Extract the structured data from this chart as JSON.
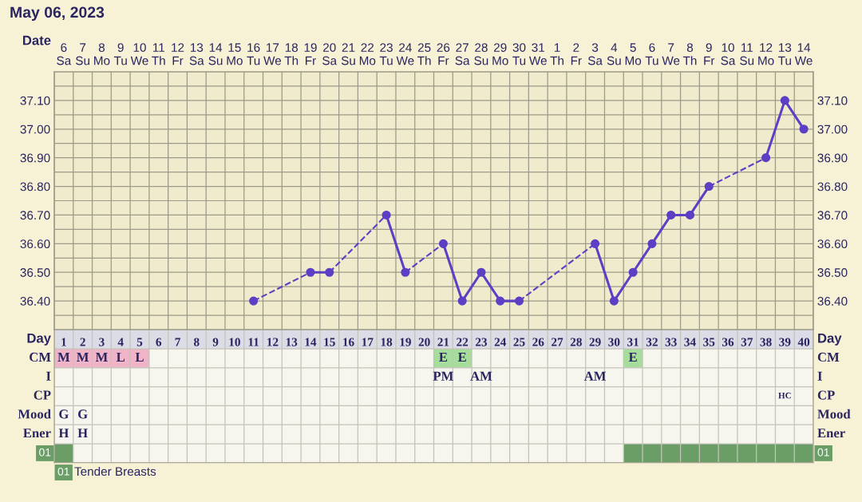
{
  "chart_data": [
    {
      "type": "line",
      "title": "May 06, 2023",
      "xlabel": "Date",
      "categories": [
        "6\nSa",
        "7\nSu",
        "8\nMo",
        "9\nTu",
        "10\nWe",
        "11\nTh",
        "12\nFr",
        "13\nSa",
        "14\nSu",
        "15\nMo",
        "16\nTu",
        "17\nWe",
        "18\nTh",
        "19\nFr",
        "20\nSa",
        "21\nSu",
        "22\nMo",
        "23\nTu",
        "24\nWe",
        "25\nTh",
        "26\nFr",
        "27\nSa",
        "28\nSu",
        "29\nMo",
        "30\nTu",
        "31\nWe",
        "1\nTh",
        "2\nFr",
        "3\nSa",
        "4\nSu",
        "5\nMo",
        "6\nTu",
        "7\nWe",
        "8\nTh",
        "9\nFr",
        "10\nSa",
        "11\nSu",
        "12\nMo",
        "13\nTu",
        "14\nWe"
      ],
      "series": [
        {
          "color": "#5b3fc4",
          "values": [
            null,
            null,
            null,
            null,
            null,
            null,
            null,
            null,
            null,
            null,
            36.4,
            null,
            null,
            36.5,
            36.5,
            null,
            null,
            36.7,
            36.5,
            null,
            36.6,
            36.4,
            36.5,
            36.4,
            36.4,
            null,
            null,
            null,
            36.6,
            36.4,
            36.5,
            36.6,
            36.7,
            36.7,
            36.8,
            null,
            null,
            36.9,
            37.1,
            37.0
          ]
        }
      ],
      "ylim": [
        36.3,
        37.2
      ],
      "yticks": [
        {
          "value": 36.35,
          "label": null
        },
        {
          "value": 36.4,
          "label": "36.40"
        },
        {
          "value": 36.45,
          "label": null
        },
        {
          "value": 36.5,
          "label": "36.50"
        },
        {
          "value": 36.55,
          "label": null
        },
        {
          "value": 36.6,
          "label": "36.60"
        },
        {
          "value": 36.65,
          "label": null
        },
        {
          "value": 36.7,
          "label": "36.70"
        },
        {
          "value": 36.75,
          "label": null
        },
        {
          "value": 36.8,
          "label": "36.80"
        },
        {
          "value": 36.85,
          "label": null
        },
        {
          "value": 36.9,
          "label": "36.90"
        },
        {
          "value": 36.95,
          "label": null
        },
        {
          "value": 37.0,
          "label": "37.00"
        },
        {
          "value": 37.05,
          "label": null
        },
        {
          "value": 37.1,
          "label": "37.10"
        },
        {
          "value": 37.15,
          "label": null
        }
      ],
      "y2lim": [
        36.3,
        37.2
      ],
      "y2ticks": [
        {
          "value": 36.35,
          "label": null
        },
        {
          "value": 36.4,
          "label": "36.40"
        },
        {
          "value": 36.45,
          "label": null
        },
        {
          "value": 36.5,
          "label": "36.50"
        },
        {
          "value": 36.55,
          "label": null
        },
        {
          "value": 36.6,
          "label": "36.60"
        },
        {
          "value": 36.65,
          "label": null
        },
        {
          "value": 36.7,
          "label": "36.70"
        },
        {
          "value": 36.75,
          "label": null
        },
        {
          "value": 36.8,
          "label": "36.80"
        },
        {
          "value": 36.85,
          "label": null
        },
        {
          "value": 36.9,
          "label": "36.90"
        },
        {
          "value": 36.95,
          "label": null
        },
        {
          "value": 37.0,
          "label": "37.00"
        },
        {
          "value": 37.05,
          "label": null
        },
        {
          "value": 37.1,
          "label": "37.10"
        },
        {
          "value": 37.15,
          "label": null
        }
      ],
      "grid": true,
      "marker": "circle"
    },
    {
      "type": "heatmap",
      "xlabel": "Day",
      "cells": [
        [
          null,
          null,
          null,
          null,
          null,
          null,
          null,
          null,
          null,
          null,
          null,
          null,
          null,
          null,
          null,
          null,
          null,
          null,
          null,
          null,
          null,
          null,
          null,
          null,
          null,
          null,
          null,
          null,
          null,
          null,
          null,
          null,
          null,
          null,
          null,
          null,
          null,
          null,
          null,
          null
        ],
        [
          null,
          null,
          null,
          null,
          null,
          null,
          null,
          null,
          null,
          null,
          null,
          null,
          null,
          null,
          null,
          null,
          null,
          null,
          null,
          null,
          null,
          null,
          null,
          null,
          null,
          null,
          null,
          null,
          null,
          null,
          null,
          null,
          null,
          null,
          null,
          null,
          null,
          null,
          null,
          null
        ],
        [
          null,
          null,
          null,
          null,
          null,
          null,
          null,
          null,
          null,
          null,
          null,
          null,
          null,
          null,
          null,
          null,
          null,
          null,
          null,
          null,
          null,
          null,
          null,
          null,
          null,
          null,
          null,
          null,
          null,
          null,
          null,
          null,
          null,
          null,
          null,
          null,
          null,
          null,
          null,
          null
        ],
        [
          null,
          null,
          null,
          null,
          null,
          null,
          null,
          null,
          null,
          null,
          null,
          null,
          null,
          null,
          null,
          null,
          null,
          null,
          null,
          null,
          null,
          null,
          null,
          null,
          null,
          null,
          null,
          null,
          null,
          null,
          null,
          null,
          null,
          null,
          null,
          null,
          null,
          null,
          null,
          null
        ],
        [
          null,
          null,
          null,
          null,
          null,
          null,
          null,
          null,
          null,
          null,
          null,
          null,
          null,
          null,
          null,
          null,
          null,
          null,
          null,
          null,
          null,
          null,
          null,
          null,
          null,
          null,
          null,
          null,
          null,
          null,
          null,
          null,
          null,
          null,
          null,
          null,
          null,
          null,
          null,
          null
        ],
        [
          null,
          null,
          null,
          null,
          null,
          null,
          null,
          null,
          null,
          null,
          null,
          null,
          null,
          null,
          null,
          null,
          null,
          null,
          null,
          null,
          null,
          null,
          null,
          null,
          null,
          null,
          null,
          null,
          null,
          null,
          null,
          null,
          null,
          null,
          null,
          null,
          null,
          null,
          null,
          null
        ]
      ],
      "categories": [
        "1",
        "2",
        "3",
        "4",
        "5",
        "6",
        "7",
        "8",
        "9",
        "10",
        "11",
        "12",
        "13",
        "14",
        "15",
        "16",
        "17",
        "18",
        "19",
        "20",
        "21",
        "22",
        "23",
        "24",
        "25",
        "26",
        "27",
        "28",
        "29",
        "30",
        "31",
        "32",
        "33",
        "34",
        "35",
        "36",
        "37",
        "38",
        "39",
        "40"
      ],
      "y_categories": [
        "CM",
        "I",
        "CP",
        "Mood",
        "Ener",
        "01"
      ],
      "y2_categories": [
        "CM",
        "I",
        "CP",
        "Mood",
        "Ener",
        "01"
      ],
      "cell_labels": [
        [
          "M",
          "M",
          "M",
          "L",
          "L",
          null,
          null,
          null,
          null,
          null,
          null,
          null,
          null,
          null,
          null,
          null,
          null,
          null,
          null,
          null,
          "E",
          "E",
          null,
          null,
          null,
          null,
          null,
          null,
          null,
          null,
          "E",
          null,
          null,
          null,
          null,
          null,
          null,
          null,
          null,
          null
        ],
        [
          null,
          null,
          null,
          null,
          null,
          null,
          null,
          null,
          null,
          null,
          null,
          null,
          null,
          null,
          null,
          null,
          null,
          null,
          null,
          null,
          "PM",
          null,
          "AM",
          null,
          null,
          null,
          null,
          null,
          "AM",
          null,
          null,
          null,
          null,
          null,
          null,
          null,
          null,
          null,
          null,
          null
        ],
        [
          null,
          null,
          null,
          null,
          null,
          null,
          null,
          null,
          null,
          null,
          null,
          null,
          null,
          null,
          null,
          null,
          null,
          null,
          null,
          null,
          null,
          null,
          null,
          null,
          null,
          null,
          null,
          null,
          null,
          null,
          null,
          null,
          null,
          null,
          null,
          null,
          null,
          null,
          "HC",
          null
        ],
        [
          "G",
          "G",
          null,
          null,
          null,
          null,
          null,
          null,
          null,
          null,
          null,
          null,
          null,
          null,
          null,
          null,
          null,
          null,
          null,
          null,
          null,
          null,
          null,
          null,
          null,
          null,
          null,
          null,
          null,
          null,
          null,
          null,
          null,
          null,
          null,
          null,
          null,
          null,
          null,
          null
        ],
        [
          "H",
          "H",
          null,
          null,
          null,
          null,
          null,
          null,
          null,
          null,
          null,
          null,
          null,
          null,
          null,
          null,
          null,
          null,
          null,
          null,
          null,
          null,
          null,
          null,
          null,
          null,
          null,
          null,
          null,
          null,
          null,
          null,
          null,
          null,
          null,
          null,
          null,
          null,
          null,
          null
        ],
        [
          null,
          null,
          null,
          null,
          null,
          null,
          null,
          null,
          null,
          null,
          null,
          null,
          null,
          null,
          null,
          null,
          null,
          null,
          null,
          null,
          null,
          null,
          null,
          null,
          null,
          null,
          null,
          null,
          null,
          null,
          null,
          null,
          null,
          null,
          null,
          null,
          null,
          null,
          null,
          null
        ]
      ],
      "colors": [
        [
          "#f0b4c8",
          "#f0b4c8",
          "#f0b4c8",
          "#f0b4c8",
          "#f0b4c8",
          null,
          null,
          null,
          null,
          null,
          null,
          null,
          null,
          null,
          null,
          null,
          null,
          null,
          null,
          null,
          "#a6dc9c",
          "#a6dc9c",
          null,
          null,
          null,
          null,
          null,
          null,
          null,
          null,
          "#a6dc9c",
          null,
          null,
          null,
          null,
          null,
          null,
          null,
          null,
          null
        ],
        [
          null,
          null,
          null,
          null,
          null,
          null,
          null,
          null,
          null,
          null,
          null,
          null,
          null,
          null,
          null,
          null,
          null,
          null,
          null,
          null,
          null,
          null,
          null,
          null,
          null,
          null,
          null,
          null,
          null,
          null,
          null,
          null,
          null,
          null,
          null,
          null,
          null,
          null,
          null,
          null
        ],
        [
          null,
          null,
          null,
          null,
          null,
          null,
          null,
          null,
          null,
          null,
          null,
          null,
          null,
          null,
          null,
          null,
          null,
          null,
          null,
          null,
          null,
          null,
          null,
          null,
          null,
          null,
          null,
          null,
          null,
          null,
          null,
          null,
          null,
          null,
          null,
          null,
          null,
          null,
          null,
          null
        ],
        [
          null,
          null,
          null,
          null,
          null,
          null,
          null,
          null,
          null,
          null,
          null,
          null,
          null,
          null,
          null,
          null,
          null,
          null,
          null,
          null,
          null,
          null,
          null,
          null,
          null,
          null,
          null,
          null,
          null,
          null,
          null,
          null,
          null,
          null,
          null,
          null,
          null,
          null,
          null,
          null
        ],
        [
          null,
          null,
          null,
          null,
          null,
          null,
          null,
          null,
          null,
          null,
          null,
          null,
          null,
          null,
          null,
          null,
          null,
          null,
          null,
          null,
          null,
          null,
          null,
          null,
          null,
          null,
          null,
          null,
          null,
          null,
          null,
          null,
          null,
          null,
          null,
          null,
          null,
          null,
          null,
          null
        ],
        [
          "#6a9e66",
          null,
          null,
          null,
          null,
          null,
          null,
          null,
          null,
          null,
          null,
          null,
          null,
          null,
          null,
          null,
          null,
          null,
          null,
          null,
          null,
          null,
          null,
          null,
          null,
          null,
          null,
          null,
          null,
          null,
          "#6a9e66",
          "#6a9e66",
          "#6a9e66",
          "#6a9e66",
          "#6a9e66",
          "#6a9e66",
          "#6a9e66",
          "#6a9e66",
          "#6a9e66",
          "#6a9e66"
        ]
      ],
      "annotations": [
        "01",
        "Tender Breasts"
      ]
    }
  ]
}
